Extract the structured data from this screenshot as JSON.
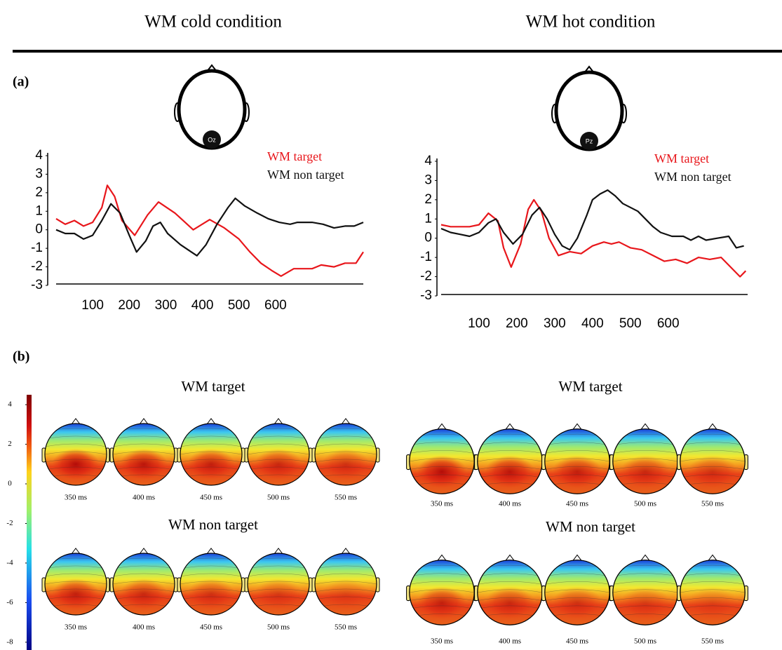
{
  "header": [
    "WM cold condition",
    "WM hot condition"
  ],
  "panels": [
    "(a)",
    "(b)"
  ],
  "chart_data": [
    {
      "type": "line",
      "electrode": "Oz",
      "xlim": [
        0,
        840
      ],
      "xticks": [
        100,
        200,
        300,
        400,
        500,
        600
      ],
      "ylim": [
        -3,
        4
      ],
      "yticks": [
        -3,
        -2,
        -1,
        0,
        1,
        2,
        3,
        4
      ],
      "series": [
        {
          "name": "WM target",
          "color": "#e8161b",
          "x": [
            0,
            25,
            50,
            75,
            100,
            125,
            140,
            160,
            180,
            215,
            250,
            280,
            325,
            375,
            420,
            460,
            500,
            530,
            560,
            590,
            615,
            650,
            700,
            725,
            760,
            790,
            820,
            840
          ],
          "values": [
            0.6,
            0.3,
            0.5,
            0.2,
            0.4,
            1.2,
            2.4,
            1.8,
            0.5,
            -0.3,
            0.8,
            1.5,
            0.9,
            0,
            0.55,
            0.1,
            -0.5,
            -1.2,
            -1.8,
            -2.2,
            -2.5,
            -2.1,
            -2.1,
            -1.9,
            -2.0,
            -1.8,
            -1.8,
            -1.2
          ]
        },
        {
          "name": "WM non target",
          "color": "#111111",
          "x": [
            0,
            25,
            50,
            75,
            100,
            125,
            150,
            175,
            200,
            220,
            245,
            265,
            285,
            305,
            340,
            370,
            385,
            410,
            440,
            470,
            490,
            515,
            550,
            580,
            610,
            640,
            660,
            700,
            730,
            760,
            790,
            815,
            840
          ],
          "values": [
            0,
            -0.2,
            -0.2,
            -0.5,
            -0.3,
            0.5,
            1.4,
            0.9,
            -0.3,
            -1.2,
            -0.6,
            0.2,
            0.4,
            -0.2,
            -0.8,
            -1.2,
            -1.4,
            -0.8,
            0.3,
            1.2,
            1.7,
            1.3,
            0.9,
            0.6,
            0.4,
            0.3,
            0.4,
            0.4,
            0.3,
            0.1,
            0.2,
            0.2,
            0.4
          ]
        }
      ]
    },
    {
      "type": "line",
      "electrode": "Pz",
      "xlim": [
        0,
        810
      ],
      "xticks": [
        100,
        200,
        300,
        400,
        500,
        600
      ],
      "ylim": [
        -3,
        4
      ],
      "yticks": [
        -3,
        -2,
        -1,
        0,
        1,
        2,
        3,
        4
      ],
      "series": [
        {
          "name": "WM target",
          "color": "#e8161b",
          "x": [
            0,
            25,
            50,
            75,
            100,
            125,
            150,
            165,
            185,
            210,
            230,
            245,
            265,
            285,
            310,
            340,
            370,
            400,
            430,
            450,
            470,
            500,
            530,
            560,
            590,
            620,
            650,
            680,
            710,
            740,
            770,
            790,
            805
          ],
          "values": [
            0.7,
            0.6,
            0.6,
            0.6,
            0.7,
            1.3,
            0.9,
            -0.5,
            -1.5,
            -0.3,
            1.5,
            2.0,
            1.4,
            0,
            -0.9,
            -0.7,
            -0.8,
            -0.4,
            -0.2,
            -0.3,
            -0.2,
            -0.5,
            -0.6,
            -0.9,
            -1.2,
            -1.1,
            -1.3,
            -1.0,
            -1.1,
            -1.0,
            -1.6,
            -2.0,
            -1.7
          ]
        },
        {
          "name": "WM non target",
          "color": "#111111",
          "x": [
            0,
            25,
            50,
            75,
            100,
            125,
            145,
            165,
            190,
            215,
            240,
            260,
            280,
            300,
            320,
            340,
            360,
            385,
            400,
            420,
            440,
            460,
            480,
            500,
            520,
            540,
            560,
            580,
            610,
            640,
            660,
            680,
            700,
            730,
            760,
            780,
            800
          ],
          "values": [
            0.5,
            0.3,
            0.2,
            0.1,
            0.3,
            0.8,
            1.0,
            0.3,
            -0.3,
            0.2,
            1.2,
            1.6,
            1.0,
            0.2,
            -0.4,
            -0.6,
            0,
            1.2,
            2.0,
            2.3,
            2.5,
            2.2,
            1.8,
            1.6,
            1.4,
            1.0,
            0.6,
            0.3,
            0.1,
            0.1,
            -0.1,
            0.1,
            -0.1,
            0,
            0.1,
            -0.5,
            -0.4
          ]
        }
      ]
    }
  ],
  "colorbar": {
    "lim": [
      -8.5,
      4.5
    ],
    "ticks": [
      4,
      2,
      0,
      -2,
      -4,
      -6,
      -8
    ]
  },
  "topomaps": [
    {
      "rows": [
        {
          "title": "WM target",
          "times": [
            "350 ms",
            "400 ms",
            "450 ms",
            "500 ms",
            "550 ms"
          ]
        },
        {
          "title": "WM non target",
          "times": [
            "350 ms",
            "400 ms",
            "450 ms",
            "500 ms",
            "550 ms"
          ]
        }
      ]
    },
    {
      "rows": [
        {
          "title": "WM target",
          "times": [
            "350 ms",
            "400 ms",
            "450 ms",
            "500 ms",
            "550 ms"
          ]
        },
        {
          "title": "WM non target",
          "times": [
            "350 ms",
            "400 ms",
            "450 ms",
            "500 ms",
            "550 ms"
          ]
        }
      ]
    }
  ]
}
